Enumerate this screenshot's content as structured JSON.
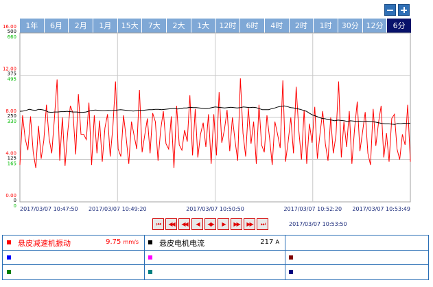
{
  "zoom": {
    "out_icon": "minus-icon",
    "in_icon": "plus-icon"
  },
  "range_tabs": [
    "1年",
    "6月",
    "2月",
    "1月",
    "15大",
    "7大",
    "2大",
    "1大",
    "12时",
    "6时",
    "4时",
    "2时",
    "1时",
    "30分",
    "12分",
    "6分"
  ],
  "active_tab": "6分",
  "chart_data": {
    "type": "line",
    "x_labels": [
      "2017/03/07 10:47:50",
      "2017/03/07 10:49:20",
      "2017/03/07 10:50:50",
      "2017/03/07 10:52:20",
      "2017/03/07 10:53:49"
    ],
    "y_axes": [
      {
        "color": "#ff0000",
        "ticks": [
          "0.00",
          "4.00",
          "8.00",
          "12.00",
          "16.00"
        ],
        "range": [
          0,
          16
        ]
      },
      {
        "color": "#000000",
        "ticks": [
          "0",
          "125",
          "250",
          "375",
          "500"
        ],
        "range": [
          0,
          500
        ]
      },
      {
        "color": "#00bb00",
        "ticks": [
          "0",
          "165",
          "330",
          "495",
          "660"
        ],
        "range": [
          0,
          660
        ]
      }
    ],
    "series": [
      {
        "name": "悬皮减速机振动",
        "color": "#ff0000",
        "axis": 0,
        "values": [
          3.5,
          8.2,
          6.0,
          4.9,
          8.1,
          4.7,
          3.2,
          7.2,
          4.1,
          5.8,
          9.2,
          6.0,
          4.6,
          7.9,
          11.6,
          3.9,
          8.0,
          3.4,
          6.6,
          9.1,
          8.4,
          4.5,
          10.2,
          6.4,
          6.4,
          5.9,
          9.4,
          3.5,
          8.2,
          4.6,
          7.7,
          3.8,
          7.0,
          8.3,
          4.3,
          7.1,
          11.4,
          5.0,
          4.3,
          8.2,
          6.1,
          3.6,
          7.6,
          6.3,
          5.0,
          10.6,
          4.7,
          6.3,
          7.9,
          4.6,
          8.4,
          7.6,
          3.9,
          6.8,
          8.6,
          5.5,
          5.0,
          8.1,
          3.2,
          9.1,
          5.4,
          4.9,
          6.8,
          5.7,
          10.1,
          4.4,
          8.8,
          4.2,
          6.4,
          7.5,
          5.2,
          8.3,
          3.6,
          8.3,
          4.4,
          10.4,
          5.6,
          6.8,
          8.7,
          4.8,
          8.0,
          5.8,
          3.9,
          11.7,
          6.5,
          4.3,
          8.9,
          5.5,
          7.6,
          3.6,
          9.2,
          5.4,
          4.7,
          8.2,
          6.0,
          3.5,
          7.6,
          6.4,
          5.1,
          11.5,
          3.8,
          5.7,
          8.0,
          4.6,
          10.9,
          6.8,
          4.0,
          8.7,
          3.6,
          7.4,
          5.6,
          9.0,
          4.1,
          6.5,
          8.6,
          5.5,
          3.9,
          8.0,
          4.6,
          6.3,
          11.4,
          4.2,
          7.6,
          5.2,
          8.6,
          3.6,
          6.9,
          9.5,
          4.8,
          6.6,
          8.5,
          4.6,
          3.5,
          8.8,
          5.3,
          7.5,
          9.1,
          4.2,
          6.5,
          3.8,
          7.9,
          8.3,
          5.0,
          4.0,
          6.4,
          5.4,
          9.2,
          3.8
        ],
        "value": "9.75",
        "unit": "mm/s",
        "swatch": "#ff0000"
      },
      {
        "name": "悬皮电机电流",
        "color": "#000000",
        "axis": 1,
        "values": [
          268,
          269,
          271,
          274,
          272,
          271,
          274,
          273,
          271,
          266,
          265,
          266,
          266,
          267,
          267,
          268,
          267,
          266,
          266,
          265,
          265,
          266,
          269,
          271,
          272,
          271,
          270,
          270,
          271,
          270,
          271,
          272,
          273,
          272,
          271,
          270,
          269,
          270,
          271,
          271,
          272,
          273,
          273,
          274,
          274,
          273,
          274,
          275,
          276,
          277,
          275,
          276,
          278,
          278,
          280,
          279,
          279,
          278,
          277,
          276,
          277,
          279,
          281,
          280,
          279,
          278,
          279,
          280,
          279,
          278,
          279,
          281,
          280,
          279,
          280,
          279,
          276,
          273,
          273,
          273,
          276,
          278,
          281,
          283,
          284,
          282,
          279,
          278,
          276,
          274,
          271,
          268,
          262,
          257,
          254,
          250,
          247,
          246,
          243,
          242,
          240,
          242,
          241,
          240,
          238,
          240,
          239,
          238,
          239,
          237,
          239,
          238,
          237,
          236,
          234,
          232,
          231,
          231,
          230,
          229,
          232,
          231,
          233,
          232,
          233
        ],
        "value": "217",
        "unit": "A",
        "swatch": "#000000"
      }
    ],
    "grid": true
  },
  "cursor_time": "2017/03/07 10:53:50",
  "nav_buttons": [
    {
      "name": "first-page-button",
      "glyph": "⏮"
    },
    {
      "name": "prev-page-button",
      "glyph": "◀◀"
    },
    {
      "name": "prev-step-button",
      "glyph": "◀◀"
    },
    {
      "name": "prev-button",
      "glyph": "◀"
    },
    {
      "name": "expand-button",
      "glyph": "◀▶"
    },
    {
      "name": "next-button",
      "glyph": "▶"
    },
    {
      "name": "next-step-button",
      "glyph": "▶▶"
    },
    {
      "name": "next-page-button",
      "glyph": "▶▶"
    },
    {
      "name": "last-page-button",
      "glyph": "⏭"
    }
  ],
  "legend": [
    [
      {
        "name": "悬皮减速机振动",
        "value": "9.75",
        "unit": "mm/s",
        "swatch": "#ff0000",
        "name_color": "#ff0000"
      },
      {
        "name": "悬皮电机电流",
        "value": "217",
        "unit": "A",
        "swatch": "#000000",
        "name_color": "#000000"
      },
      {
        "name": "",
        "value": "",
        "unit": "",
        "swatch": "",
        "name_color": "#000000"
      }
    ],
    [
      {
        "name": "",
        "value": "",
        "unit": "",
        "swatch": "#0000ff",
        "name_color": "#000000"
      },
      {
        "name": "",
        "value": "",
        "unit": "",
        "swatch": "#ff00ff",
        "name_color": "#000000"
      },
      {
        "name": "",
        "value": "",
        "unit": "",
        "swatch": "#800000",
        "name_color": "#000000"
      }
    ],
    [
      {
        "name": "",
        "value": "",
        "unit": "",
        "swatch": "#008000",
        "name_color": "#000000"
      },
      {
        "name": "",
        "value": "",
        "unit": "",
        "swatch": "#008080",
        "name_color": "#000000"
      },
      {
        "name": "",
        "value": "",
        "unit": "",
        "swatch": "#000080",
        "name_color": "#000000"
      }
    ]
  ]
}
